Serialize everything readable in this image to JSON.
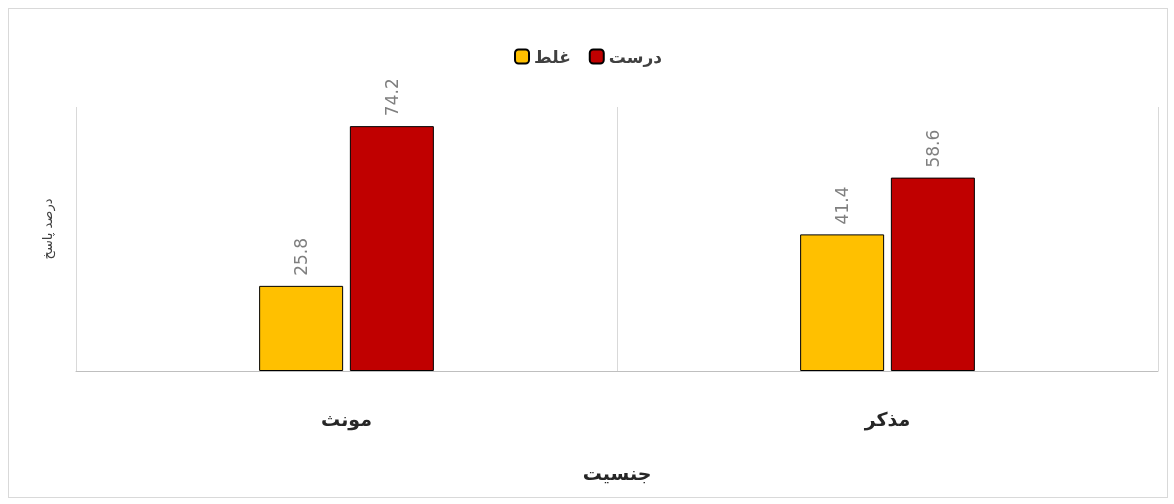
{
  "chart_data": {
    "type": "bar",
    "xlabel": "جنسیت",
    "ylabel": "درصد پاسخ",
    "categories": [
      "مونث",
      "مذکر"
    ],
    "series": [
      {
        "name": "غلط",
        "color": "#ffc000",
        "values": [
          25.8,
          41.4
        ]
      },
      {
        "name": "درست",
        "color": "#c00000",
        "values": [
          74.2,
          58.6
        ]
      }
    ],
    "data_labels": true,
    "grid": "x",
    "legend": "top"
  }
}
